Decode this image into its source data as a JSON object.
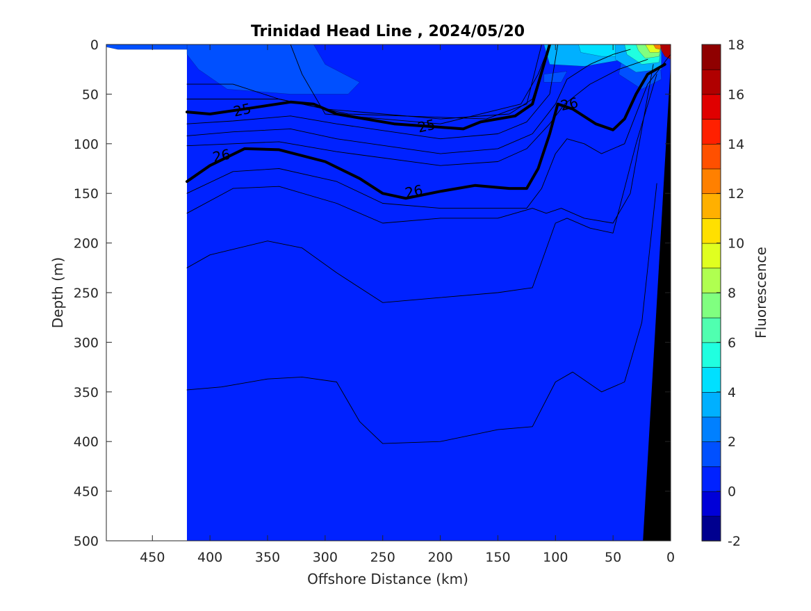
{
  "chart_data": {
    "type": "heatmap",
    "title": "Trinidad Head Line , 2024/05/20",
    "xlabel": "Offshore Distance (km)",
    "ylabel": "Depth (m)",
    "colorbar_label": "Fluorescence",
    "x_reversed": true,
    "y_reversed": true,
    "xlim": [
      490,
      0
    ],
    "ylim": [
      0,
      500
    ],
    "x_ticks": [
      450,
      400,
      350,
      300,
      250,
      200,
      150,
      100,
      50,
      0
    ],
    "y_ticks": [
      0,
      50,
      100,
      150,
      200,
      250,
      300,
      350,
      400,
      450,
      500
    ],
    "colorbar_ticks": [
      -2,
      0,
      2,
      4,
      6,
      8,
      10,
      12,
      14,
      16,
      18
    ],
    "colorbar_range": [
      -2,
      18
    ],
    "data_extent_km": [
      420,
      0
    ],
    "background_value": 0.8,
    "colormap": [
      "#00008f",
      "#0000d8",
      "#0022ff",
      "#0050ff",
      "#0080ff",
      "#00b0ff",
      "#00e0ff",
      "#20ffe0",
      "#50ffb0",
      "#80ff80",
      "#b0ff50",
      "#e0ff20",
      "#ffe000",
      "#ffb000",
      "#ff8000",
      "#ff5000",
      "#ff2000",
      "#e00000",
      "#b00000",
      "#8f0000"
    ],
    "fluorescence_patches": [
      {
        "value": 1.6,
        "outline": [
          [
            420,
            0
          ],
          [
            310,
            0
          ],
          [
            300,
            20
          ],
          [
            270,
            38
          ],
          [
            280,
            50
          ],
          [
            330,
            50
          ],
          [
            385,
            45
          ],
          [
            410,
            25
          ],
          [
            420,
            10
          ]
        ]
      },
      {
        "value": 1.8,
        "outline": [
          [
            500,
            0
          ],
          [
            420,
            0
          ],
          [
            420,
            5
          ],
          [
            480,
            5
          ]
        ]
      },
      {
        "value": 1.6,
        "outline": [
          [
            110,
            0
          ],
          [
            90,
            0
          ],
          [
            80,
            10
          ],
          [
            100,
            15
          ]
        ]
      },
      {
        "value": 1.6,
        "outline": [
          [
            40,
            0
          ],
          [
            10,
            0
          ],
          [
            8,
            35
          ],
          [
            25,
            45
          ],
          [
            45,
            30
          ]
        ]
      },
      {
        "value": 1.6,
        "outline": [
          [
            110,
            30
          ],
          [
            90,
            27
          ],
          [
            95,
            38
          ],
          [
            110,
            38
          ]
        ]
      },
      {
        "value": 3,
        "outline": [
          [
            110,
            0
          ],
          [
            60,
            0
          ],
          [
            40,
            15
          ],
          [
            75,
            22
          ],
          [
            105,
            20
          ]
        ]
      },
      {
        "value": 4.5,
        "outline": [
          [
            80,
            0
          ],
          [
            30,
            0
          ],
          [
            35,
            12
          ],
          [
            60,
            12
          ],
          [
            78,
            8
          ]
        ]
      },
      {
        "value": 3,
        "outline": [
          [
            48,
            0
          ],
          [
            8,
            0
          ],
          [
            8,
            25
          ],
          [
            30,
            28
          ],
          [
            48,
            15
          ]
        ]
      },
      {
        "value": 5,
        "outline": [
          [
            40,
            0
          ],
          [
            8,
            0
          ],
          [
            10,
            18
          ],
          [
            25,
            20
          ],
          [
            38,
            10
          ]
        ]
      },
      {
        "value": 7,
        "outline": [
          [
            30,
            0
          ],
          [
            8,
            0
          ],
          [
            10,
            12
          ],
          [
            22,
            14
          ],
          [
            28,
            6
          ]
        ]
      },
      {
        "value": 9.5,
        "outline": [
          [
            22,
            0
          ],
          [
            8,
            0
          ],
          [
            10,
            8
          ],
          [
            18,
            8
          ]
        ]
      },
      {
        "value": 12,
        "outline": [
          [
            15,
            0
          ],
          [
            8,
            0
          ],
          [
            9,
            5
          ],
          [
            13,
            4
          ]
        ]
      },
      {
        "value": 16,
        "outline": [
          [
            9,
            0
          ],
          [
            0,
            0
          ],
          [
            0,
            15
          ],
          [
            5,
            12
          ],
          [
            8,
            6
          ]
        ]
      }
    ],
    "isopycnals": [
      {
        "label": "",
        "bold": false,
        "points": [
          [
            330,
            0
          ],
          [
            320,
            30
          ],
          [
            300,
            70
          ],
          [
            200,
            80
          ],
          [
            130,
            60
          ],
          [
            115,
            30
          ],
          [
            105,
            0
          ]
        ]
      },
      {
        "label": "",
        "bold": false,
        "points": [
          [
            420,
            40
          ],
          [
            380,
            40
          ],
          [
            340,
            55
          ],
          [
            300,
            65
          ],
          [
            200,
            75
          ],
          [
            140,
            70
          ],
          [
            120,
            55
          ],
          [
            105,
            0
          ]
        ]
      },
      {
        "label": "",
        "bold": false,
        "points": [
          [
            420,
            55
          ],
          [
            340,
            55
          ],
          [
            280,
            70
          ],
          [
            160,
            75
          ],
          [
            125,
            60
          ],
          [
            112,
            0
          ]
        ]
      },
      {
        "label": "25",
        "bold": true,
        "label_at": [
          [
            372,
            66
          ],
          [
            212,
            82
          ]
        ],
        "points": [
          [
            420,
            68
          ],
          [
            400,
            70
          ],
          [
            370,
            65
          ],
          [
            330,
            58
          ],
          [
            310,
            60
          ],
          [
            290,
            70
          ],
          [
            240,
            80
          ],
          [
            180,
            85
          ],
          [
            165,
            78
          ],
          [
            135,
            72
          ],
          [
            120,
            60
          ],
          [
            105,
            0
          ]
        ]
      },
      {
        "label": "",
        "bold": false,
        "points": [
          [
            420,
            80
          ],
          [
            380,
            77
          ],
          [
            330,
            72
          ],
          [
            290,
            80
          ],
          [
            200,
            95
          ],
          [
            150,
            90
          ],
          [
            125,
            78
          ],
          [
            105,
            50
          ],
          [
            98,
            0
          ]
        ]
      },
      {
        "label": "",
        "bold": false,
        "points": [
          [
            420,
            92
          ],
          [
            380,
            88
          ],
          [
            330,
            85
          ],
          [
            290,
            95
          ],
          [
            200,
            110
          ],
          [
            150,
            105
          ],
          [
            120,
            90
          ],
          [
            100,
            60
          ],
          [
            90,
            35
          ],
          [
            70,
            20
          ],
          [
            50,
            10
          ],
          [
            35,
            5
          ]
        ]
      },
      {
        "label": "",
        "bold": false,
        "points": [
          [
            420,
            102
          ],
          [
            380,
            100
          ],
          [
            340,
            98
          ],
          [
            290,
            108
          ],
          [
            200,
            122
          ],
          [
            150,
            118
          ],
          [
            125,
            105
          ],
          [
            105,
            80
          ],
          [
            92,
            60
          ],
          [
            70,
            40
          ],
          [
            45,
            25
          ],
          [
            20,
            15
          ]
        ]
      },
      {
        "label": "26",
        "bold": true,
        "label_at": [
          [
            390,
            112
          ],
          [
            223,
            148
          ],
          [
            88,
            60
          ]
        ],
        "points": [
          [
            420,
            138
          ],
          [
            400,
            122
          ],
          [
            370,
            105
          ],
          [
            340,
            106
          ],
          [
            300,
            118
          ],
          [
            270,
            135
          ],
          [
            250,
            150
          ],
          [
            230,
            155
          ],
          [
            200,
            148
          ],
          [
            170,
            142
          ],
          [
            140,
            145
          ],
          [
            125,
            145
          ],
          [
            115,
            125
          ],
          [
            105,
            90
          ],
          [
            98,
            60
          ],
          [
            85,
            65
          ],
          [
            65,
            80
          ],
          [
            50,
            86
          ],
          [
            40,
            75
          ],
          [
            30,
            50
          ],
          [
            20,
            30
          ],
          [
            5,
            20
          ]
        ]
      },
      {
        "label": "",
        "bold": false,
        "points": [
          [
            420,
            150
          ],
          [
            380,
            128
          ],
          [
            340,
            125
          ],
          [
            290,
            138
          ],
          [
            250,
            160
          ],
          [
            200,
            165
          ],
          [
            150,
            165
          ],
          [
            125,
            165
          ],
          [
            112,
            145
          ],
          [
            100,
            110
          ],
          [
            90,
            95
          ],
          [
            75,
            100
          ],
          [
            60,
            110
          ],
          [
            40,
            100
          ],
          [
            20,
            40
          ],
          [
            0,
            10
          ]
        ]
      },
      {
        "label": "",
        "bold": false,
        "points": [
          [
            420,
            170
          ],
          [
            380,
            145
          ],
          [
            340,
            143
          ],
          [
            290,
            160
          ],
          [
            250,
            180
          ],
          [
            200,
            175
          ],
          [
            150,
            175
          ],
          [
            120,
            165
          ],
          [
            108,
            170
          ],
          [
            95,
            165
          ],
          [
            75,
            175
          ],
          [
            50,
            180
          ],
          [
            35,
            150
          ],
          [
            15,
            20
          ]
        ]
      },
      {
        "label": "",
        "bold": false,
        "points": [
          [
            420,
            225
          ],
          [
            400,
            212
          ],
          [
            350,
            198
          ],
          [
            320,
            205
          ],
          [
            290,
            230
          ],
          [
            250,
            260
          ],
          [
            200,
            255
          ],
          [
            150,
            250
          ],
          [
            120,
            245
          ],
          [
            100,
            180
          ],
          [
            90,
            175
          ],
          [
            70,
            185
          ],
          [
            50,
            190
          ],
          [
            30,
            100
          ],
          [
            12,
            30
          ]
        ]
      },
      {
        "label": "",
        "bold": false,
        "points": [
          [
            420,
            348
          ],
          [
            390,
            345
          ],
          [
            350,
            337
          ],
          [
            320,
            335
          ],
          [
            290,
            340
          ],
          [
            270,
            380
          ],
          [
            250,
            402
          ],
          [
            200,
            400
          ],
          [
            150,
            388
          ],
          [
            120,
            385
          ],
          [
            100,
            340
          ],
          [
            85,
            330
          ],
          [
            60,
            350
          ],
          [
            40,
            340
          ],
          [
            25,
            280
          ],
          [
            12,
            140
          ]
        ]
      }
    ],
    "bottom_topography": [
      [
        24,
        500
      ],
      [
        0,
        20
      ],
      [
        0,
        500
      ]
    ]
  }
}
